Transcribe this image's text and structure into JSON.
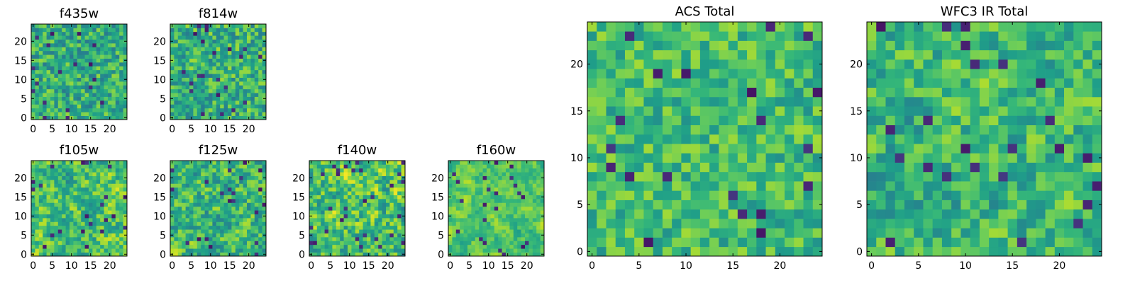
{
  "chart_data": [
    {
      "type": "heatmap",
      "title": "f435w",
      "size": [
        25,
        25
      ],
      "colormap": "viridis",
      "xticks": [
        0,
        5,
        10,
        15,
        20
      ],
      "yticks": [
        0,
        5,
        10,
        15,
        20
      ],
      "xlim": [
        -0.5,
        24.5
      ],
      "ylim": [
        -0.5,
        24.5
      ],
      "cell_range": [
        0,
        1
      ],
      "seed": 11,
      "bias": 0.62,
      "spread": 0.22,
      "smooth": 0
    },
    {
      "type": "heatmap",
      "title": "f814w",
      "size": [
        25,
        25
      ],
      "colormap": "viridis",
      "xticks": [
        0,
        5,
        10,
        15,
        20
      ],
      "yticks": [
        0,
        5,
        10,
        15,
        20
      ],
      "xlim": [
        -0.5,
        24.5
      ],
      "ylim": [
        -0.5,
        24.5
      ],
      "cell_range": [
        0,
        1
      ],
      "seed": 23,
      "bias": 0.64,
      "spread": 0.22,
      "smooth": 0
    },
    {
      "type": "heatmap",
      "title": "f105w",
      "size": [
        25,
        25
      ],
      "colormap": "viridis",
      "xticks": [
        0,
        5,
        10,
        15,
        20
      ],
      "yticks": [
        0,
        5,
        10,
        15,
        20
      ],
      "xlim": [
        -0.5,
        24.5
      ],
      "ylim": [
        -0.5,
        24.5
      ],
      "cell_range": [
        0,
        1
      ],
      "seed": 37,
      "bias": 0.7,
      "spread": 0.2,
      "smooth": 1
    },
    {
      "type": "heatmap",
      "title": "f125w",
      "size": [
        25,
        25
      ],
      "colormap": "viridis",
      "xticks": [
        0,
        5,
        10,
        15,
        20
      ],
      "yticks": [
        0,
        5,
        10,
        15,
        20
      ],
      "xlim": [
        -0.5,
        24.5
      ],
      "ylim": [
        -0.5,
        24.5
      ],
      "cell_range": [
        0,
        1
      ],
      "seed": 41,
      "bias": 0.66,
      "spread": 0.21,
      "smooth": 1
    },
    {
      "type": "heatmap",
      "title": "f140w",
      "size": [
        25,
        25
      ],
      "colormap": "viridis",
      "xticks": [
        0,
        5,
        10,
        15,
        20
      ],
      "yticks": [
        0,
        5,
        10,
        15,
        20
      ],
      "xlim": [
        -0.5,
        24.5
      ],
      "ylim": [
        -0.5,
        24.5
      ],
      "cell_range": [
        0,
        1
      ],
      "seed": 53,
      "bias": 0.7,
      "spread": 0.24,
      "smooth": 1
    },
    {
      "type": "heatmap",
      "title": "f160w",
      "size": [
        25,
        25
      ],
      "colormap": "viridis",
      "xticks": [
        0,
        5,
        10,
        15,
        20
      ],
      "yticks": [
        0,
        5,
        10,
        15,
        20
      ],
      "xlim": [
        -0.5,
        24.5
      ],
      "ylim": [
        -0.5,
        24.5
      ],
      "cell_range": [
        0,
        1
      ],
      "seed": 67,
      "bias": 0.72,
      "spread": 0.2,
      "smooth": 2
    },
    {
      "type": "heatmap",
      "title": "ACS Total",
      "size": [
        25,
        25
      ],
      "colormap": "viridis",
      "xticks": [
        0,
        5,
        10,
        15,
        20
      ],
      "yticks": [
        0,
        5,
        10,
        15,
        20
      ],
      "xlim": [
        -0.5,
        24.5
      ],
      "ylim": [
        -0.5,
        24.5
      ],
      "cell_range": [
        0,
        1
      ],
      "seed": 79,
      "bias": 0.68,
      "spread": 0.18,
      "smooth": 0
    },
    {
      "type": "heatmap",
      "title": "WFC3 IR Total",
      "size": [
        25,
        25
      ],
      "colormap": "viridis",
      "xticks": [
        0,
        5,
        10,
        15,
        20
      ],
      "yticks": [
        0,
        5,
        10,
        15,
        20
      ],
      "xlim": [
        -0.5,
        24.5
      ],
      "ylim": [
        -0.5,
        24.5
      ],
      "cell_range": [
        0,
        1
      ],
      "seed": 97,
      "bias": 0.66,
      "spread": 0.19,
      "smooth": 1
    }
  ]
}
